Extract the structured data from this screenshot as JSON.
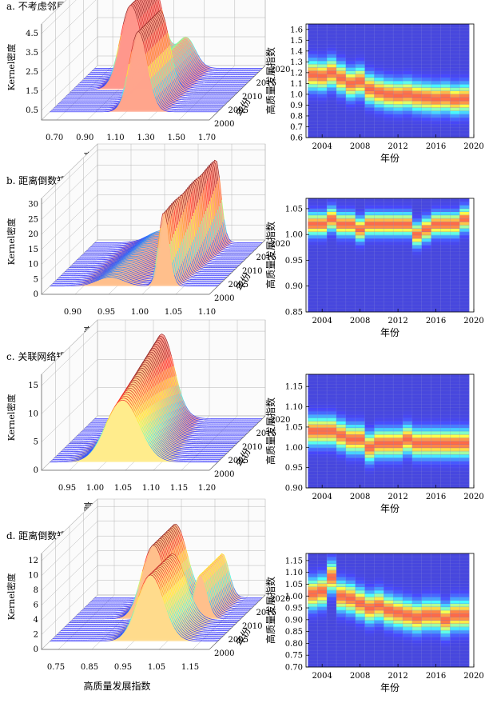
{
  "chart_data": [
    {
      "id": "a",
      "panel_title": "a. 不考虑邻居情形",
      "surface": {
        "type": "3d-kernel-density",
        "xlabel": "高质量发展指数",
        "ylabel": "年份",
        "zlabel": "Kernel密度",
        "x_ticks": [
          "0.70",
          "0.90",
          "1.10",
          "1.30",
          "1.50",
          "1.70"
        ],
        "y_ticks": [
          "2000",
          "2005",
          "2010",
          "2015",
          "2020"
        ],
        "z_ticks": [
          "0.5",
          "1.5",
          "2.5",
          "3.5",
          "4.5"
        ],
        "xlim": [
          0.6,
          1.7
        ],
        "ylim": [
          2000,
          2020
        ],
        "zlim": [
          0,
          5
        ],
        "years": [
          2003,
          2019
        ],
        "peaks_early": [
          [
            1.18,
            0.06,
            4.2
          ]
        ],
        "peaks_late": [
          [
            0.98,
            0.07,
            4.4
          ],
          [
            1.2,
            0.06,
            1.6
          ]
        ]
      },
      "heatmap": {
        "type": "heatmap",
        "xlabel": "年份",
        "ylabel": "高质量发展指数",
        "x_ticks": [
          "2004",
          "2008",
          "2012",
          "2016",
          "2020"
        ],
        "y_ticks": [
          "0.6",
          "0.7",
          "0.8",
          "0.9",
          "1.0",
          "1.1",
          "1.2",
          "1.3",
          "1.4",
          "1.5",
          "1.6"
        ],
        "xlim": [
          2002.3,
          2020
        ],
        "ylim": [
          0.6,
          1.65
        ],
        "year_range": [
          2003,
          2019
        ],
        "center_by_year": [
          1.18,
          1.17,
          1.2,
          1.15,
          1.1,
          1.12,
          1.05,
          1.02,
          1.0,
          0.99,
          1.0,
          0.98,
          0.97,
          0.96,
          0.97,
          0.95,
          0.96
        ],
        "spread": 0.085
      }
    },
    {
      "id": "b",
      "panel_title": "b. 距离倒数矩阵情形",
      "surface": {
        "type": "3d-kernel-density",
        "xlabel": "高质量发展指数",
        "ylabel": "年份",
        "zlabel": "Kernel密度",
        "x_ticks": [
          "0.90",
          "0.95",
          "1.00",
          "1.05",
          "1.10"
        ],
        "y_ticks": [
          "2000",
          "2005",
          "2010",
          "2015",
          "2020"
        ],
        "z_ticks": [
          "0",
          "5",
          "10",
          "15",
          "20",
          "25",
          "30"
        ],
        "xlim": [
          0.85,
          1.1
        ],
        "ylim": [
          2000,
          2020
        ],
        "zlim": [
          0,
          32
        ],
        "years": [
          2003,
          2019
        ],
        "peaks_early": [
          [
            1.02,
            0.008,
            25
          ],
          [
            0.94,
            0.02,
            3
          ]
        ],
        "peaks_late": [
          [
            1.03,
            0.008,
            28
          ],
          [
            0.95,
            0.02,
            4
          ]
        ]
      },
      "heatmap": {
        "type": "heatmap",
        "xlabel": "年份",
        "ylabel": "高质量发展指数",
        "x_ticks": [
          "2004",
          "2008",
          "2012",
          "2016",
          "2020"
        ],
        "y_ticks": [
          "0.85",
          "0.90",
          "0.95",
          "1.00",
          "1.05"
        ],
        "xlim": [
          2002.3,
          2020
        ],
        "ylim": [
          0.85,
          1.07
        ],
        "year_range": [
          2003,
          2019
        ],
        "center_by_year": [
          1.02,
          1.02,
          1.03,
          1.02,
          1.02,
          1.01,
          1.02,
          1.02,
          1.02,
          1.02,
          1.02,
          1.0,
          1.01,
          1.02,
          1.02,
          1.02,
          1.03
        ],
        "spread": 0.014
      }
    },
    {
      "id": "c",
      "panel_title": "c. 关联网络矩阵情形",
      "surface": {
        "type": "3d-kernel-density",
        "xlabel": "高质量发展指数",
        "ylabel": "年份",
        "zlabel": "Kernel密度",
        "x_ticks": [
          "0.95",
          "1.00",
          "1.05",
          "1.10",
          "1.15",
          "1.20"
        ],
        "y_ticks": [
          "2000",
          "2005",
          "2010",
          "2015",
          "2020"
        ],
        "z_ticks": [
          "0",
          "5",
          "10",
          "15"
        ],
        "xlim": [
          0.9,
          1.2
        ],
        "ylim": [
          2000,
          2020
        ],
        "zlim": [
          0,
          17
        ],
        "years": [
          2003,
          2019
        ],
        "peaks_early": [
          [
            1.03,
            0.03,
            11
          ]
        ],
        "peaks_late": [
          [
            1.02,
            0.022,
            15
          ]
        ]
      },
      "heatmap": {
        "type": "heatmap",
        "xlabel": "年份",
        "ylabel": "高质量发展指数",
        "x_ticks": [
          "2004",
          "2008",
          "2012",
          "2016",
          "2020"
        ],
        "y_ticks": [
          "0.90",
          "0.95",
          "1.00",
          "1.05",
          "1.10",
          "1.15"
        ],
        "xlim": [
          2002.3,
          2020
        ],
        "ylim": [
          0.9,
          1.18
        ],
        "year_range": [
          2003,
          2019
        ],
        "center_by_year": [
          1.04,
          1.04,
          1.04,
          1.03,
          1.02,
          1.02,
          1.0,
          1.01,
          1.01,
          1.01,
          1.02,
          1.01,
          1.01,
          1.01,
          1.01,
          1.01,
          1.01
        ],
        "spread": 0.022
      }
    },
    {
      "id": "d",
      "panel_title": "d. 距离倒数矩阵与关联网络矩阵耦合情形",
      "surface": {
        "type": "3d-kernel-density",
        "xlabel": "高质量发展指数",
        "ylabel": "年份",
        "zlabel": "Kernel密度",
        "x_ticks": [
          "0.75",
          "0.85",
          "0.95",
          "1.05",
          "1.15"
        ],
        "y_ticks": [
          "2000",
          "2005",
          "2010",
          "2015",
          "2020"
        ],
        "z_ticks": [
          "0",
          "2",
          "4",
          "6",
          "8",
          "10",
          "12"
        ],
        "xlim": [
          0.7,
          1.2
        ],
        "ylim": [
          2000,
          2020
        ],
        "zlim": [
          0,
          13
        ],
        "years": [
          2003,
          2019
        ],
        "peaks_early": [
          [
            1.0,
            0.04,
            9
          ]
        ],
        "peaks_late": [
          [
            0.94,
            0.035,
            10
          ],
          [
            1.08,
            0.02,
            6
          ]
        ]
      },
      "heatmap": {
        "type": "heatmap",
        "xlabel": "年份",
        "ylabel": "高质量发展指数",
        "x_ticks": [
          "2004",
          "2008",
          "2012",
          "2016",
          "2020"
        ],
        "y_ticks": [
          "0.70",
          "0.75",
          "0.80",
          "0.85",
          "0.90",
          "0.95",
          "1.00",
          "1.05",
          "1.10",
          "1.15"
        ],
        "xlim": [
          2002.3,
          2020
        ],
        "ylim": [
          0.7,
          1.18
        ],
        "year_range": [
          2003,
          2019
        ],
        "center_by_year": [
          1.01,
          1.02,
          1.08,
          1.0,
          0.99,
          0.97,
          0.95,
          0.96,
          0.94,
          0.93,
          0.92,
          0.91,
          0.92,
          0.92,
          0.9,
          0.92,
          0.92
        ],
        "spread": 0.04
      }
    }
  ]
}
